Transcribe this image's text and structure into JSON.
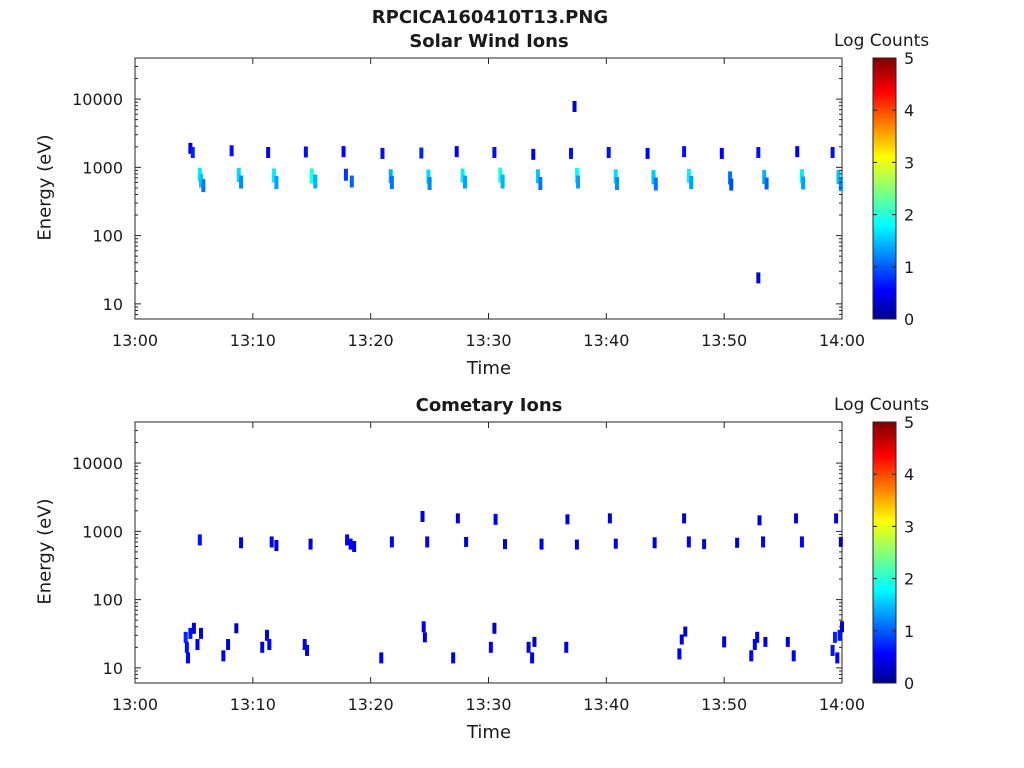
{
  "figure": {
    "title": "RPCICA160410T13.PNG"
  },
  "chart_data": [
    {
      "type": "heatmap",
      "title": "Solar Wind Ions",
      "xlabel": "Time",
      "ylabel": "Energy (eV)",
      "x_ticks": [
        "13:00",
        "13:10",
        "13:20",
        "13:30",
        "13:40",
        "13:50",
        "14:00"
      ],
      "xlim_minutes": [
        0,
        60
      ],
      "y_scale": "log",
      "ylim": [
        6,
        40000
      ],
      "y_ticks": [
        10,
        100,
        1000,
        10000
      ],
      "y_tick_labels": [
        "10",
        "100",
        "1000",
        "10000"
      ],
      "colorbar": {
        "label": "Log Counts",
        "min": 0,
        "max": 5,
        "ticks": [
          "0",
          "1",
          "2",
          "3",
          "4",
          "5"
        ],
        "colormap": "jet"
      },
      "cells": [
        {
          "t": 4.7,
          "e": 1900,
          "v": 0.6
        },
        {
          "t": 4.9,
          "e": 1650,
          "v": 0.8
        },
        {
          "t": 5.5,
          "e": 780,
          "v": 1.8
        },
        {
          "t": 5.6,
          "e": 640,
          "v": 1.6
        },
        {
          "t": 5.8,
          "e": 540,
          "v": 1.2
        },
        {
          "t": 8.2,
          "e": 1750,
          "v": 0.7
        },
        {
          "t": 8.8,
          "e": 770,
          "v": 1.7
        },
        {
          "t": 9.0,
          "e": 610,
          "v": 1.3
        },
        {
          "t": 11.3,
          "e": 1650,
          "v": 0.6
        },
        {
          "t": 11.8,
          "e": 760,
          "v": 1.8
        },
        {
          "t": 12.0,
          "e": 600,
          "v": 1.4
        },
        {
          "t": 14.5,
          "e": 1680,
          "v": 0.7
        },
        {
          "t": 15.0,
          "e": 750,
          "v": 2.0
        },
        {
          "t": 15.3,
          "e": 620,
          "v": 1.5
        },
        {
          "t": 17.7,
          "e": 1700,
          "v": 0.6
        },
        {
          "t": 17.9,
          "e": 780,
          "v": 0.9
        },
        {
          "t": 18.4,
          "e": 620,
          "v": 1.1
        },
        {
          "t": 21.0,
          "e": 1600,
          "v": 0.7
        },
        {
          "t": 21.7,
          "e": 740,
          "v": 1.5
        },
        {
          "t": 21.8,
          "e": 600,
          "v": 1.2
        },
        {
          "t": 24.3,
          "e": 1620,
          "v": 0.8
        },
        {
          "t": 24.9,
          "e": 730,
          "v": 1.7
        },
        {
          "t": 25.0,
          "e": 580,
          "v": 1.3
        },
        {
          "t": 27.3,
          "e": 1700,
          "v": 0.6
        },
        {
          "t": 27.8,
          "e": 760,
          "v": 1.8
        },
        {
          "t": 28.0,
          "e": 610,
          "v": 1.4
        },
        {
          "t": 30.5,
          "e": 1650,
          "v": 0.7
        },
        {
          "t": 31.0,
          "e": 770,
          "v": 2.0
        },
        {
          "t": 31.2,
          "e": 620,
          "v": 1.5
        },
        {
          "t": 33.8,
          "e": 1550,
          "v": 0.6
        },
        {
          "t": 34.2,
          "e": 740,
          "v": 1.6
        },
        {
          "t": 34.4,
          "e": 580,
          "v": 1.2
        },
        {
          "t": 37.0,
          "e": 1600,
          "v": 0.7
        },
        {
          "t": 37.3,
          "e": 7800,
          "v": 0.5
        },
        {
          "t": 37.5,
          "e": 760,
          "v": 1.9
        },
        {
          "t": 37.6,
          "e": 610,
          "v": 1.4
        },
        {
          "t": 40.2,
          "e": 1650,
          "v": 0.7
        },
        {
          "t": 40.8,
          "e": 740,
          "v": 1.7
        },
        {
          "t": 40.9,
          "e": 580,
          "v": 1.3
        },
        {
          "t": 43.5,
          "e": 1600,
          "v": 0.6
        },
        {
          "t": 44.0,
          "e": 720,
          "v": 1.6
        },
        {
          "t": 44.2,
          "e": 570,
          "v": 1.2
        },
        {
          "t": 46.6,
          "e": 1700,
          "v": 0.7
        },
        {
          "t": 47.0,
          "e": 750,
          "v": 1.8
        },
        {
          "t": 47.2,
          "e": 600,
          "v": 1.4
        },
        {
          "t": 49.8,
          "e": 1600,
          "v": 0.6
        },
        {
          "t": 50.5,
          "e": 700,
          "v": 1.2
        },
        {
          "t": 50.6,
          "e": 560,
          "v": 1.0
        },
        {
          "t": 52.9,
          "e": 1650,
          "v": 0.7
        },
        {
          "t": 52.9,
          "e": 24,
          "v": 0.5
        },
        {
          "t": 53.4,
          "e": 720,
          "v": 1.5
        },
        {
          "t": 53.6,
          "e": 580,
          "v": 1.1
        },
        {
          "t": 56.2,
          "e": 1700,
          "v": 0.6
        },
        {
          "t": 56.6,
          "e": 740,
          "v": 1.8
        },
        {
          "t": 56.7,
          "e": 590,
          "v": 1.4
        },
        {
          "t": 59.2,
          "e": 1650,
          "v": 0.7
        },
        {
          "t": 59.7,
          "e": 720,
          "v": 1.6
        },
        {
          "t": 59.9,
          "e": 560,
          "v": 1.3
        }
      ]
    },
    {
      "type": "heatmap",
      "title": "Cometary Ions",
      "xlabel": "Time",
      "ylabel": "Energy (eV)",
      "x_ticks": [
        "13:00",
        "13:10",
        "13:20",
        "13:30",
        "13:40",
        "13:50",
        "14:00"
      ],
      "xlim_minutes": [
        0,
        60
      ],
      "y_scale": "log",
      "ylim": [
        6,
        40000
      ],
      "y_ticks": [
        10,
        100,
        1000,
        10000
      ],
      "y_tick_labels": [
        "10",
        "100",
        "1000",
        "10000"
      ],
      "colorbar": {
        "label": "Log Counts",
        "min": 0,
        "max": 5,
        "ticks": [
          "0",
          "1",
          "2",
          "3",
          "4",
          "5"
        ],
        "colormap": "jet"
      },
      "cells": [
        {
          "t": 4.3,
          "e": 28,
          "v": 0.8
        },
        {
          "t": 4.4,
          "e": 20,
          "v": 0.7
        },
        {
          "t": 4.5,
          "e": 14,
          "v": 0.6
        },
        {
          "t": 4.7,
          "e": 32,
          "v": 0.7
        },
        {
          "t": 5.0,
          "e": 38,
          "v": 0.5
        },
        {
          "t": 5.3,
          "e": 22,
          "v": 0.6
        },
        {
          "t": 5.5,
          "e": 750,
          "v": 0.7
        },
        {
          "t": 5.6,
          "e": 32,
          "v": 0.5
        },
        {
          "t": 7.5,
          "e": 15,
          "v": 0.5
        },
        {
          "t": 7.9,
          "e": 22,
          "v": 0.5
        },
        {
          "t": 8.6,
          "e": 38,
          "v": 0.4
        },
        {
          "t": 9.0,
          "e": 680,
          "v": 0.5
        },
        {
          "t": 10.8,
          "e": 20,
          "v": 0.5
        },
        {
          "t": 11.2,
          "e": 30,
          "v": 0.5
        },
        {
          "t": 11.4,
          "e": 22,
          "v": 0.6
        },
        {
          "t": 11.6,
          "e": 700,
          "v": 0.5
        },
        {
          "t": 12.0,
          "e": 620,
          "v": 0.5
        },
        {
          "t": 14.4,
          "e": 22,
          "v": 0.5
        },
        {
          "t": 14.6,
          "e": 18,
          "v": 0.5
        },
        {
          "t": 14.9,
          "e": 650,
          "v": 0.5
        },
        {
          "t": 18.0,
          "e": 750,
          "v": 0.6
        },
        {
          "t": 18.3,
          "e": 650,
          "v": 0.6
        },
        {
          "t": 18.6,
          "e": 600,
          "v": 0.5
        },
        {
          "t": 20.9,
          "e": 14,
          "v": 0.5
        },
        {
          "t": 21.8,
          "e": 700,
          "v": 0.5
        },
        {
          "t": 24.4,
          "e": 1650,
          "v": 0.5
        },
        {
          "t": 24.5,
          "e": 40,
          "v": 0.5
        },
        {
          "t": 24.6,
          "e": 28,
          "v": 0.4
        },
        {
          "t": 24.8,
          "e": 700,
          "v": 0.5
        },
        {
          "t": 27.0,
          "e": 14,
          "v": 0.5
        },
        {
          "t": 27.4,
          "e": 1550,
          "v": 0.4
        },
        {
          "t": 28.1,
          "e": 700,
          "v": 0.4
        },
        {
          "t": 30.2,
          "e": 20,
          "v": 0.5
        },
        {
          "t": 30.5,
          "e": 38,
          "v": 0.5
        },
        {
          "t": 30.6,
          "e": 1500,
          "v": 0.5
        },
        {
          "t": 31.4,
          "e": 650,
          "v": 0.4
        },
        {
          "t": 33.4,
          "e": 20,
          "v": 0.6
        },
        {
          "t": 33.7,
          "e": 14,
          "v": 0.5
        },
        {
          "t": 33.9,
          "e": 24,
          "v": 0.4
        },
        {
          "t": 34.5,
          "e": 650,
          "v": 0.5
        },
        {
          "t": 36.6,
          "e": 20,
          "v": 0.5
        },
        {
          "t": 36.7,
          "e": 1500,
          "v": 0.4
        },
        {
          "t": 37.5,
          "e": 640,
          "v": 0.4
        },
        {
          "t": 40.3,
          "e": 1550,
          "v": 0.4
        },
        {
          "t": 40.8,
          "e": 660,
          "v": 0.4
        },
        {
          "t": 44.1,
          "e": 680,
          "v": 0.5
        },
        {
          "t": 46.2,
          "e": 16,
          "v": 0.5
        },
        {
          "t": 46.4,
          "e": 26,
          "v": 0.4
        },
        {
          "t": 46.6,
          "e": 1550,
          "v": 0.4
        },
        {
          "t": 46.7,
          "e": 34,
          "v": 0.4
        },
        {
          "t": 47.0,
          "e": 700,
          "v": 0.5
        },
        {
          "t": 48.3,
          "e": 650,
          "v": 0.4
        },
        {
          "t": 50.0,
          "e": 24,
          "v": 0.5
        },
        {
          "t": 51.1,
          "e": 680,
          "v": 0.4
        },
        {
          "t": 52.3,
          "e": 15,
          "v": 0.6
        },
        {
          "t": 52.6,
          "e": 22,
          "v": 0.6
        },
        {
          "t": 52.8,
          "e": 28,
          "v": 0.5
        },
        {
          "t": 53.0,
          "e": 1450,
          "v": 0.4
        },
        {
          "t": 53.3,
          "e": 700,
          "v": 0.6
        },
        {
          "t": 53.5,
          "e": 24,
          "v": 0.4
        },
        {
          "t": 55.4,
          "e": 24,
          "v": 0.4
        },
        {
          "t": 55.9,
          "e": 15,
          "v": 0.5
        },
        {
          "t": 56.1,
          "e": 1550,
          "v": 0.4
        },
        {
          "t": 56.6,
          "e": 700,
          "v": 0.6
        },
        {
          "t": 59.2,
          "e": 18,
          "v": 0.7
        },
        {
          "t": 59.4,
          "e": 28,
          "v": 0.8
        },
        {
          "t": 59.5,
          "e": 1550,
          "v": 0.4
        },
        {
          "t": 59.6,
          "e": 14,
          "v": 0.6
        },
        {
          "t": 59.8,
          "e": 30,
          "v": 0.7
        },
        {
          "t": 59.9,
          "e": 700,
          "v": 0.4
        },
        {
          "t": 60.0,
          "e": 40,
          "v": 0.5
        }
      ]
    }
  ]
}
